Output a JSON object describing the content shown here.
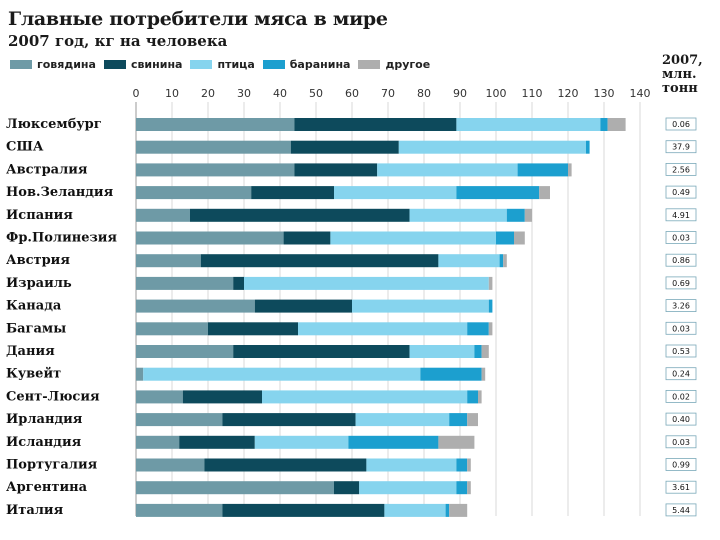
{
  "header": {
    "title": "Главные потребители мяса в мире",
    "subtitle": "2007 год, кг на человека",
    "side_header": "2007, млн. тонн"
  },
  "legend": [
    {
      "label": "говядина",
      "color": "#6e9aa6"
    },
    {
      "label": "свинина",
      "color": "#0d4a5c"
    },
    {
      "label": "птица",
      "color": "#86d4ee"
    },
    {
      "label": "баранина",
      "color": "#1c9fcf"
    },
    {
      "label": "другое",
      "color": "#aeaeae"
    }
  ],
  "chart_data": {
    "type": "bar",
    "orientation": "horizontal",
    "stacked": true,
    "xlim": [
      0,
      140
    ],
    "x_ticks": [
      0,
      10,
      20,
      30,
      40,
      50,
      60,
      70,
      80,
      90,
      100,
      110,
      120,
      130,
      140
    ],
    "grid": true,
    "legend_position": "top",
    "categories": [
      "Люксембург",
      "США",
      "Австралия",
      "Нов.Зеландия",
      "Испания",
      "Фр.Полинезия",
      "Австрия",
      "Израиль",
      "Канада",
      "Багамы",
      "Дания",
      "Кувейт",
      "Сент-Люсия",
      "Ирландия",
      "Исландия",
      "Португалия",
      "Аргентина",
      "Италия"
    ],
    "series": [
      {
        "name": "говядина",
        "values": [
          44,
          43,
          44,
          32,
          15,
          41,
          18,
          27,
          33,
          20,
          27,
          2,
          13,
          24,
          12,
          19,
          55,
          24
        ]
      },
      {
        "name": "свинина",
        "values": [
          45,
          30,
          23,
          23,
          61,
          13,
          66,
          3,
          27,
          25,
          49,
          0,
          22,
          37,
          21,
          45,
          7,
          45
        ]
      },
      {
        "name": "птица",
        "values": [
          40,
          52,
          39,
          34,
          27,
          46,
          17,
          68,
          38,
          47,
          18,
          77,
          57,
          26,
          26,
          25,
          27,
          17
        ]
      },
      {
        "name": "баранина",
        "values": [
          2,
          1,
          14,
          23,
          5,
          5,
          1,
          0,
          1,
          6,
          2,
          17,
          3,
          5,
          25,
          3,
          3,
          1
        ]
      },
      {
        "name": "другое",
        "values": [
          5,
          0,
          1,
          3,
          2,
          3,
          1,
          1,
          0,
          1,
          2,
          1,
          1,
          3,
          10,
          1,
          1,
          5
        ]
      }
    ],
    "side_values": [
      "0.06",
      "37.9",
      "2.56",
      "0.49",
      "4.91",
      "0.03",
      "0.86",
      "0.69",
      "3.26",
      "0.03",
      "0.53",
      "0.24",
      "0.02",
      "0.40",
      "0.03",
      "0.99",
      "3.61",
      "5.44"
    ]
  }
}
